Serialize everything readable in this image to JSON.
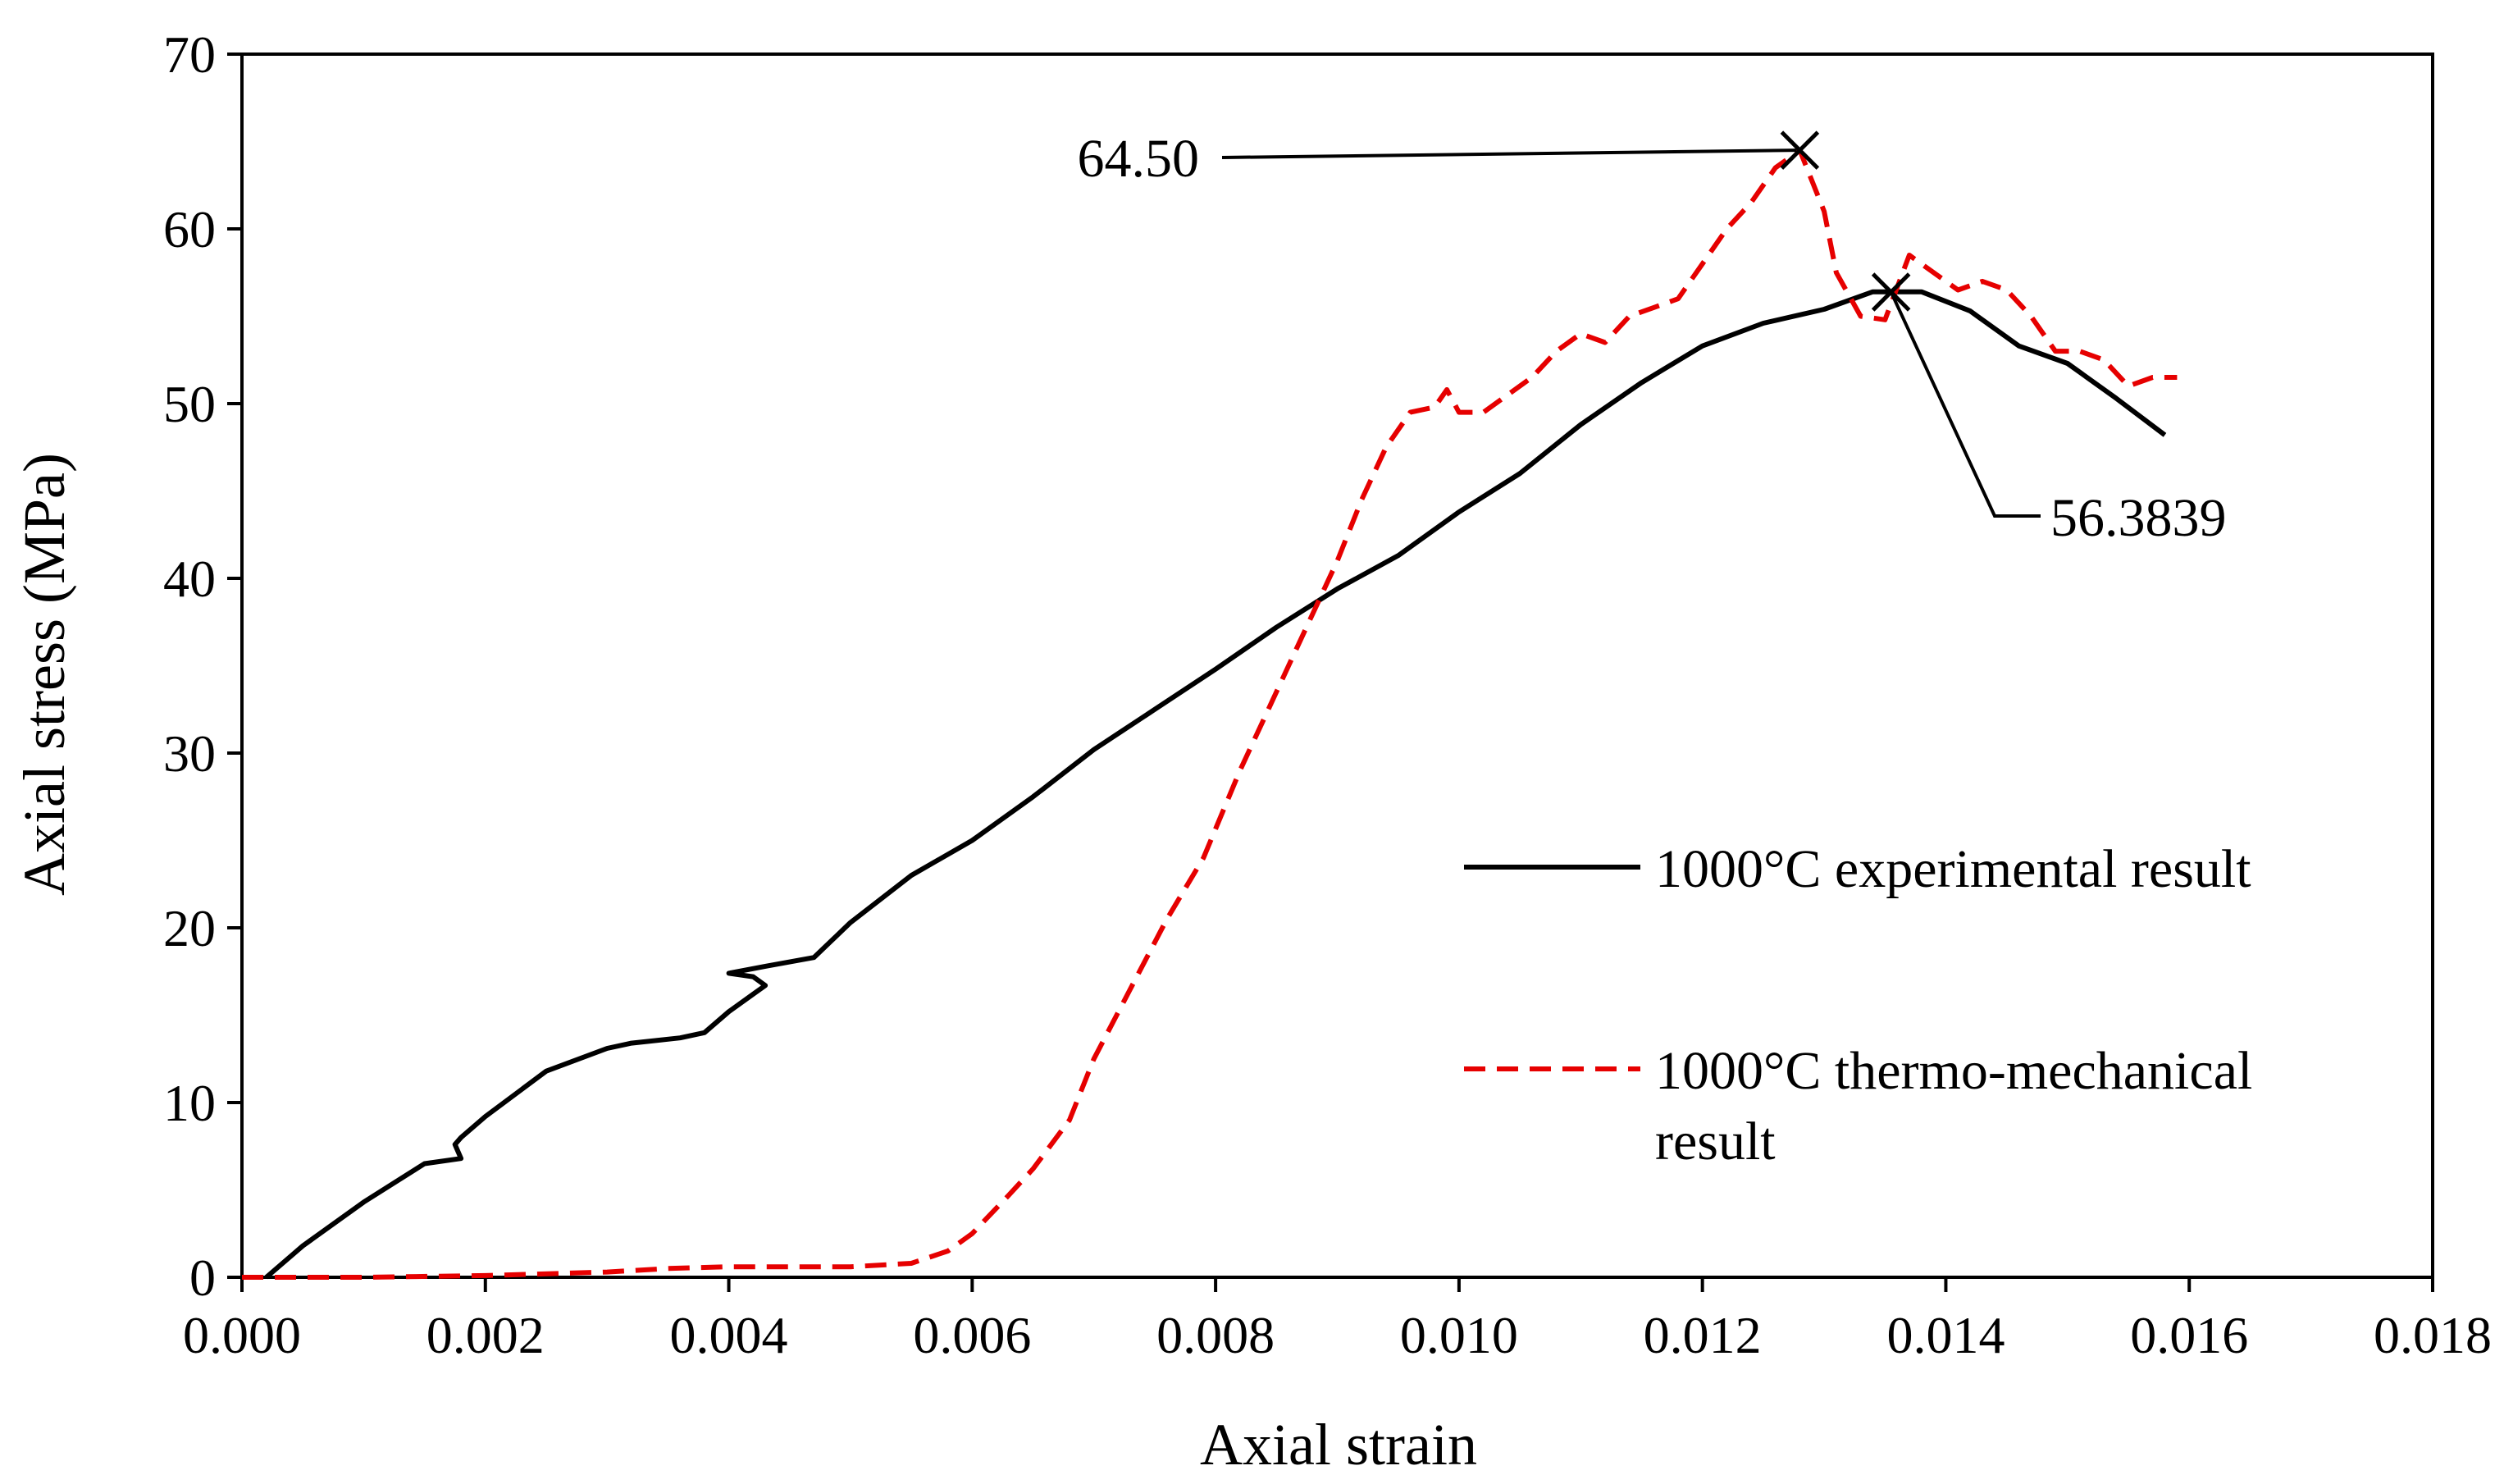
{
  "chart_data": {
    "type": "line",
    "title": "",
    "xlabel": "Axial strain",
    "ylabel": "Axial stress (MPa)",
    "xlim": [
      0,
      0.018
    ],
    "ylim": [
      0,
      70
    ],
    "xticks": [
      0,
      0.002,
      0.004,
      0.006,
      0.008,
      0.01,
      0.012,
      0.014,
      0.016,
      0.018
    ],
    "xtick_labels": [
      "0.000",
      "0.002",
      "0.004",
      "0.006",
      "0.008",
      "0.010",
      "0.012",
      "0.014",
      "0.016",
      "0.018"
    ],
    "yticks": [
      0,
      10,
      20,
      30,
      40,
      50,
      60,
      70
    ],
    "ytick_labels": [
      "0",
      "10",
      "20",
      "30",
      "40",
      "50",
      "60",
      "70"
    ],
    "grid": false,
    "legend_position": "right",
    "series": [
      {
        "name": "1000°C experimental result",
        "color": "#000000",
        "style": "solid",
        "x": [
          0.0002,
          0.0005,
          0.001,
          0.0015,
          0.0018,
          0.00175,
          0.0018,
          0.002,
          0.0025,
          0.003,
          0.0032,
          0.0036,
          0.0038,
          0.004,
          0.0042,
          0.0043,
          0.0042,
          0.004,
          0.0043,
          0.0047,
          0.005,
          0.0055,
          0.006,
          0.0065,
          0.007,
          0.0075,
          0.008,
          0.0085,
          0.009,
          0.0095,
          0.01,
          0.0105,
          0.011,
          0.0115,
          0.012,
          0.0125,
          0.013,
          0.0134,
          0.0138,
          0.0142,
          0.0146,
          0.015,
          0.0154,
          0.0158
        ],
        "y": [
          0,
          1.8,
          4.3,
          6.5,
          6.8,
          7.6,
          8.0,
          9.2,
          11.8,
          13.1,
          13.4,
          13.7,
          14.0,
          15.2,
          16.2,
          16.7,
          17.2,
          17.4,
          17.8,
          18.3,
          20.3,
          23.0,
          25.0,
          27.5,
          30.2,
          32.5,
          34.8,
          37.2,
          39.4,
          41.3,
          43.8,
          46.0,
          48.8,
          51.2,
          53.3,
          54.6,
          55.4,
          56.4,
          56.4,
          55.3,
          53.3,
          52.3,
          50.3,
          48.2
        ]
      },
      {
        "name": "1000°C thermo-mechanical result",
        "color": "#e60000",
        "style": "dashed",
        "x": [
          0,
          0.001,
          0.002,
          0.003,
          0.0035,
          0.004,
          0.0045,
          0.005,
          0.0055,
          0.0058,
          0.006,
          0.0063,
          0.0065,
          0.0068,
          0.007,
          0.0073,
          0.0076,
          0.0079,
          0.0082,
          0.0084,
          0.0086,
          0.0088,
          0.009,
          0.0092,
          0.0094,
          0.0096,
          0.0098,
          0.0099,
          0.01,
          0.0102,
          0.0104,
          0.0106,
          0.0108,
          0.011,
          0.0112,
          0.0114,
          0.0116,
          0.0118,
          0.012,
          0.0122,
          0.0124,
          0.0126,
          0.0128,
          0.013,
          0.0131,
          0.0133,
          0.0135,
          0.0137,
          0.0139,
          0.0141,
          0.0143,
          0.0145,
          0.0147,
          0.0149,
          0.0151,
          0.0153,
          0.0155,
          0.0157,
          0.0159
        ],
        "y": [
          0,
          0,
          0.1,
          0.3,
          0.5,
          0.6,
          0.6,
          0.6,
          0.8,
          1.5,
          2.5,
          4.7,
          6.2,
          9.0,
          12.5,
          16.5,
          20.5,
          24.0,
          29.0,
          32.0,
          35.0,
          38.0,
          41.0,
          44.5,
          47.5,
          49.5,
          49.8,
          50.8,
          49.5,
          49.5,
          50.5,
          51.5,
          53.0,
          54.0,
          53.5,
          55.0,
          55.5,
          56.0,
          58.0,
          60.0,
          61.5,
          63.5,
          64.5,
          61.0,
          57.5,
          55.0,
          54.8,
          58.5,
          57.5,
          56.5,
          57.0,
          56.5,
          55.0,
          53.0,
          53.0,
          52.5,
          51.0,
          51.5,
          51.5
        ]
      }
    ],
    "annotations": [
      {
        "text": "64.50",
        "x": 0.0128,
        "y": 64.5,
        "marker": "x"
      },
      {
        "text": "56.3839",
        "x": 0.01355,
        "y": 56.3839,
        "marker": "x"
      }
    ]
  }
}
